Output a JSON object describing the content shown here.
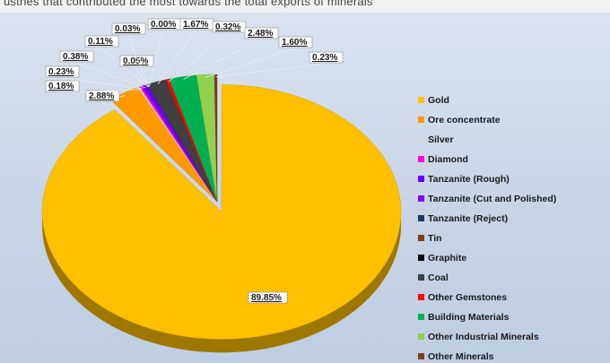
{
  "page": {
    "top_text": "ustries that contributed the most towards the total exports of minerals"
  },
  "chart_data": {
    "type": "pie",
    "title": "",
    "legend_position": "right",
    "categories": [
      "Gold",
      "Ore concentrate",
      "Silver",
      "Diamond",
      "Tanzanite (Rough)",
      "Tanzanite (Cut and Polished)",
      "Tanzanite (Reject)",
      "Tin",
      "Graphite",
      "Coal",
      "Other Gemstones",
      "Building Materials",
      "Other Industrial Minerals",
      "Other Minerals"
    ],
    "values": [
      89.85,
      2.88,
      0.18,
      0.23,
      0.38,
      0.11,
      0.05,
      0.03,
      0.0,
      1.67,
      0.32,
      2.48,
      1.6,
      0.23
    ],
    "data_labels": [
      "89.85%",
      "2.88%",
      "0.18%",
      "0.23%",
      "0.38%",
      "0.11%",
      "0.05%",
      "0.03%",
      "0.00%",
      "1.67%",
      "0.32%",
      "2.48%",
      "1.60%",
      "0.23%"
    ],
    "colors": [
      "#ffc000",
      "#ff9900",
      "#d9d9d9",
      "#ff00cc",
      "#6600ff",
      "#7f00ff",
      "#1f3864",
      "#843c0c",
      "#0d0d0d",
      "#404040",
      "#ff0000",
      "#00b050",
      "#92d050",
      "#7f3f1f"
    ]
  }
}
